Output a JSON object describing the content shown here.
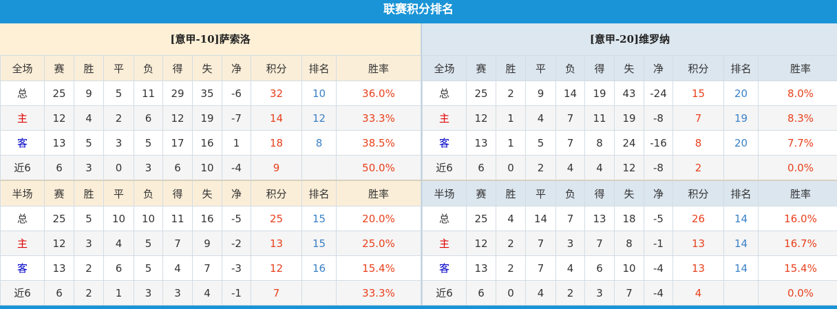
{
  "title": "联赛积分排名",
  "headers_full": [
    "全场",
    "赛",
    "胜",
    "平",
    "负",
    "得",
    "失",
    "净",
    "积分",
    "排名",
    "胜率"
  ],
  "headers_half": [
    "半场",
    "赛",
    "胜",
    "平",
    "负",
    "得",
    "失",
    "净",
    "积分",
    "排名",
    "胜率"
  ],
  "colors": {
    "title_bg": "#1a94d6",
    "points": "#e8401c",
    "rank": "#3a80c6",
    "home_label": "#e00000",
    "away_label": "#0000c8"
  },
  "teams": [
    {
      "name": "[意甲-10]萨索洛",
      "full": [
        [
          "总",
          "25",
          "9",
          "5",
          "11",
          "29",
          "35",
          "-6",
          "32",
          "10",
          "36.0%"
        ],
        [
          "主",
          "12",
          "4",
          "2",
          "6",
          "12",
          "19",
          "-7",
          "14",
          "12",
          "33.3%"
        ],
        [
          "客",
          "13",
          "5",
          "3",
          "5",
          "17",
          "16",
          "1",
          "18",
          "8",
          "38.5%"
        ],
        [
          "近6",
          "6",
          "3",
          "0",
          "3",
          "6",
          "10",
          "-4",
          "9",
          "",
          "50.0%"
        ]
      ],
      "half": [
        [
          "总",
          "25",
          "5",
          "10",
          "10",
          "11",
          "16",
          "-5",
          "25",
          "15",
          "20.0%"
        ],
        [
          "主",
          "12",
          "3",
          "4",
          "5",
          "7",
          "9",
          "-2",
          "13",
          "15",
          "25.0%"
        ],
        [
          "客",
          "13",
          "2",
          "6",
          "5",
          "4",
          "7",
          "-3",
          "12",
          "16",
          "15.4%"
        ],
        [
          "近6",
          "6",
          "2",
          "1",
          "3",
          "3",
          "4",
          "-1",
          "7",
          "",
          "33.3%"
        ]
      ]
    },
    {
      "name": "[意甲-20]维罗纳",
      "full": [
        [
          "总",
          "25",
          "2",
          "9",
          "14",
          "19",
          "43",
          "-24",
          "15",
          "20",
          "8.0%"
        ],
        [
          "主",
          "12",
          "1",
          "4",
          "7",
          "11",
          "19",
          "-8",
          "7",
          "19",
          "8.3%"
        ],
        [
          "客",
          "13",
          "1",
          "5",
          "7",
          "8",
          "24",
          "-16",
          "8",
          "20",
          "7.7%"
        ],
        [
          "近6",
          "6",
          "0",
          "2",
          "4",
          "4",
          "12",
          "-8",
          "2",
          "",
          "0.0%"
        ]
      ],
      "half": [
        [
          "总",
          "25",
          "4",
          "14",
          "7",
          "13",
          "18",
          "-5",
          "26",
          "14",
          "16.0%"
        ],
        [
          "主",
          "12",
          "2",
          "7",
          "3",
          "7",
          "8",
          "-1",
          "13",
          "14",
          "16.7%"
        ],
        [
          "客",
          "13",
          "2",
          "7",
          "4",
          "6",
          "10",
          "-4",
          "13",
          "14",
          "15.4%"
        ],
        [
          "近6",
          "6",
          "0",
          "4",
          "2",
          "3",
          "7",
          "-4",
          "4",
          "",
          "0.0%"
        ]
      ]
    }
  ]
}
